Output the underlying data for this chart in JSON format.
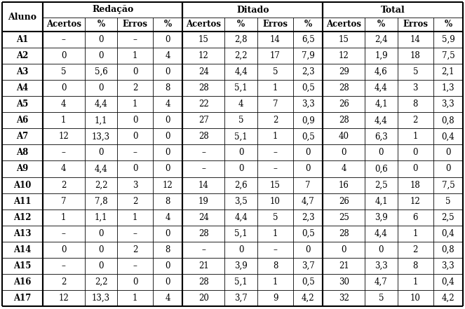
{
  "subheaders": [
    "Aluno",
    "Acertos",
    "%",
    "Erros",
    "%",
    "Acertos",
    "%",
    "Erros",
    "%",
    "Acertos",
    "%",
    "Erros",
    "%"
  ],
  "group_labels": [
    "Redação",
    "Ditado",
    "Total"
  ],
  "rows": [
    [
      "A1",
      "–",
      "0",
      "–",
      "0",
      "15",
      "2,8",
      "14",
      "6,5",
      "15",
      "2,4",
      "14",
      "5,9"
    ],
    [
      "A2",
      "0",
      "0",
      "1",
      "4",
      "12",
      "2,2",
      "17",
      "7,9",
      "12",
      "1,9",
      "18",
      "7,5"
    ],
    [
      "A3",
      "5",
      "5,6",
      "0",
      "0",
      "24",
      "4,4",
      "5",
      "2,3",
      "29",
      "4,6",
      "5",
      "2,1"
    ],
    [
      "A4",
      "0",
      "0",
      "2",
      "8",
      "28",
      "5,1",
      "1",
      "0,5",
      "28",
      "4,4",
      "3",
      "1,3"
    ],
    [
      "A5",
      "4",
      "4,4",
      "1",
      "4",
      "22",
      "4",
      "7",
      "3,3",
      "26",
      "4,1",
      "8",
      "3,3"
    ],
    [
      "A6",
      "1",
      "1,1",
      "0",
      "0",
      "27",
      "5",
      "2",
      "0,9",
      "28",
      "4,4",
      "2",
      "0,8"
    ],
    [
      "A7",
      "12",
      "13,3",
      "0",
      "0",
      "28",
      "5,1",
      "1",
      "0,5",
      "40",
      "6,3",
      "1",
      "0,4"
    ],
    [
      "A8",
      "–",
      "0",
      "–",
      "0",
      "–",
      "0",
      "–",
      "0",
      "0",
      "0",
      "0",
      "0"
    ],
    [
      "A9",
      "4",
      "4,4",
      "0",
      "0",
      "–",
      "0",
      "–",
      "0",
      "4",
      "0,6",
      "0",
      "0"
    ],
    [
      "A10",
      "2",
      "2,2",
      "3",
      "12",
      "14",
      "2,6",
      "15",
      "7",
      "16",
      "2,5",
      "18",
      "7,5"
    ],
    [
      "A11",
      "7",
      "7,8",
      "2",
      "8",
      "19",
      "3,5",
      "10",
      "4,7",
      "26",
      "4,1",
      "12",
      "5"
    ],
    [
      "A12",
      "1",
      "1,1",
      "1",
      "4",
      "24",
      "4,4",
      "5",
      "2,3",
      "25",
      "3,9",
      "6",
      "2,5"
    ],
    [
      "A13",
      "–",
      "0",
      "–",
      "0",
      "28",
      "5,1",
      "1",
      "0,5",
      "28",
      "4,4",
      "1",
      "0,4"
    ],
    [
      "A14",
      "0",
      "0",
      "2",
      "8",
      "–",
      "0",
      "–",
      "0",
      "0",
      "0",
      "2",
      "0,8"
    ],
    [
      "A15",
      "–",
      "0",
      "–",
      "0",
      "21",
      "3,9",
      "8",
      "3,7",
      "21",
      "3,3",
      "8",
      "3,3"
    ],
    [
      "A16",
      "2",
      "2,2",
      "0",
      "0",
      "28",
      "5,1",
      "1",
      "0,5",
      "30",
      "4,7",
      "1",
      "0,4"
    ],
    [
      "A17",
      "12",
      "13,3",
      "1",
      "4",
      "20",
      "3,7",
      "9",
      "4,2",
      "32",
      "5",
      "10",
      "4,2"
    ]
  ],
  "bg_color": "#ffffff",
  "font_size": 8.5,
  "header_font_size": 8.5,
  "group_font_size": 9.0
}
